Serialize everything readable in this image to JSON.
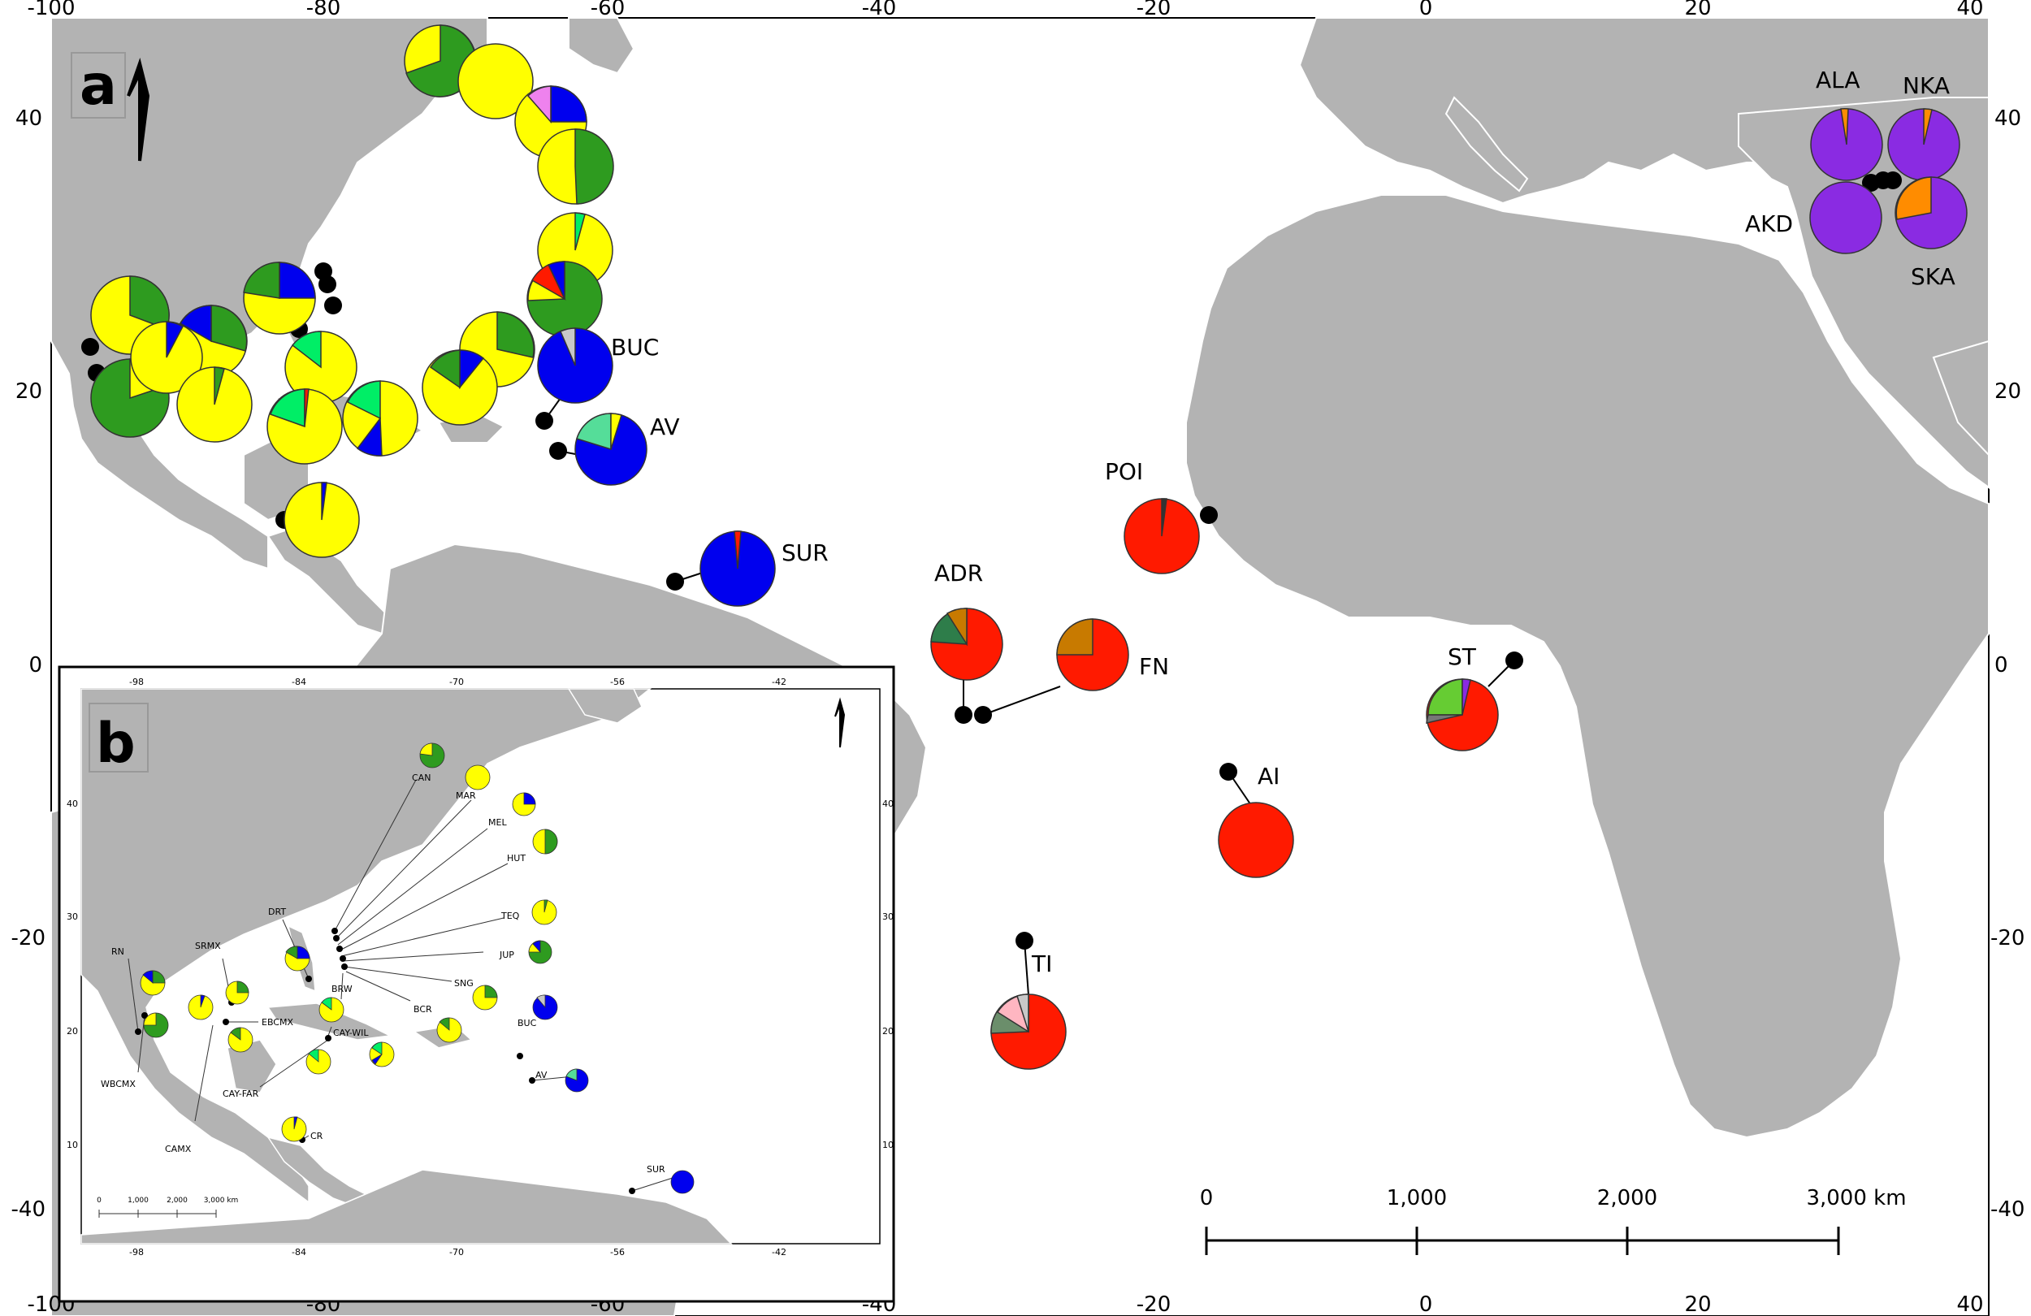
{
  "panel_a": {
    "label": "a",
    "x_ticks": [
      "-100",
      "-80",
      "-60",
      "-40",
      "-20",
      "0",
      "20",
      "40"
    ],
    "y_ticks": [
      "40",
      "20",
      "0",
      "-20",
      "-40"
    ],
    "scale_bar": {
      "labels": [
        "0",
        "1,000",
        "2,000",
        "3,000 km"
      ]
    },
    "site_labels": [
      "BUC",
      "AV",
      "SUR",
      "POI",
      "ADR",
      "FN",
      "AI",
      "TI",
      "ST",
      "ALA",
      "NKA",
      "AKD",
      "SKA"
    ],
    "colors": {
      "land": "#b3b3b3",
      "sea": "#ffffff",
      "yellow": "#ffff00",
      "green": "#2e9b1f",
      "blue": "#0000ee",
      "red": "#ff1a00",
      "purple": "#8a2be2",
      "orange": "#ff8c00"
    }
  },
  "panel_b": {
    "label": "b",
    "x_ticks": [
      "-98",
      "-84",
      "-70",
      "-56",
      "-42"
    ],
    "y_ticks": [
      "40",
      "30",
      "20",
      "10"
    ],
    "scale_bar": {
      "labels": [
        "0",
        "1,000",
        "2,000",
        "3,000 km"
      ]
    },
    "site_labels": [
      "CAN",
      "MAR",
      "MEL",
      "HUT",
      "TEQ",
      "JUP",
      "SNG",
      "BCR",
      "BRW",
      "DRT",
      "SRMX",
      "RN",
      "EBCMX",
      "CAY-WIL",
      "CAY-FAR",
      "WBCMX",
      "CAMX",
      "CR",
      "BUC",
      "AV",
      "SUR"
    ]
  }
}
